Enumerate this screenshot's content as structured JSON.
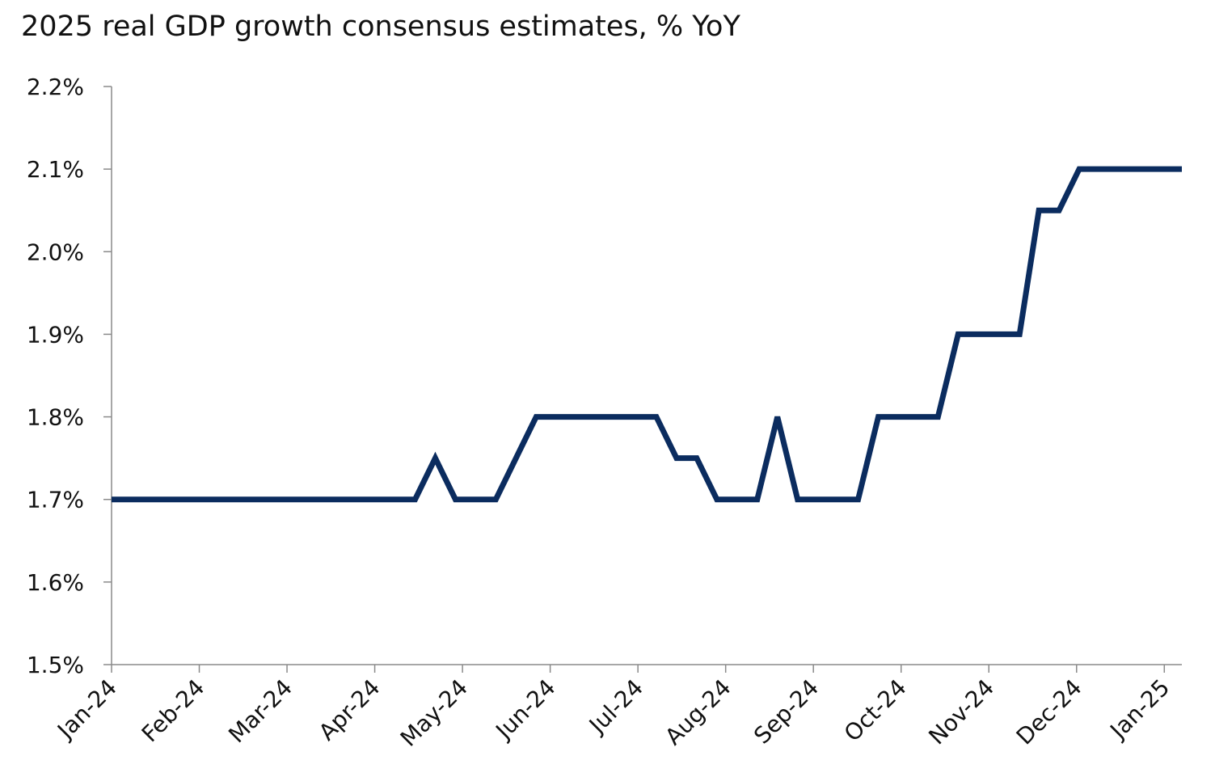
{
  "chart_data": {
    "type": "line",
    "title": "2025 real GDP growth consensus estimates, % YoY",
    "x": [
      0,
      3.46,
      3.69,
      3.92,
      4.38,
      4.84,
      6.21,
      6.44,
      6.67,
      6.9,
      7.36,
      7.59,
      7.82,
      8.51,
      8.74,
      9.42,
      9.65,
      10.35,
      10.57,
      10.8,
      11.03,
      12.2
    ],
    "series": [
      {
        "color": "#0b2c5f",
        "values": [
          1.7,
          1.7,
          1.75,
          1.7,
          1.7,
          1.8,
          1.8,
          1.75,
          1.75,
          1.7,
          1.7,
          1.8,
          1.7,
          1.7,
          1.8,
          1.8,
          1.9,
          1.9,
          2.05,
          2.05,
          2.1,
          2.1
        ]
      }
    ],
    "xlim": [
      0,
      12.2
    ],
    "xticks": [
      {
        "value": 0,
        "label": "Jan-24"
      },
      {
        "value": 1,
        "label": "Feb-24"
      },
      {
        "value": 2,
        "label": "Mar-24"
      },
      {
        "value": 3,
        "label": "Apr-24"
      },
      {
        "value": 4,
        "label": "May-24"
      },
      {
        "value": 5,
        "label": "Jun-24"
      },
      {
        "value": 6,
        "label": "Jul-24"
      },
      {
        "value": 7,
        "label": "Aug-24"
      },
      {
        "value": 8,
        "label": "Sep-24"
      },
      {
        "value": 9,
        "label": "Oct-24"
      },
      {
        "value": 10,
        "label": "Nov-24"
      },
      {
        "value": 11,
        "label": "Dec-24"
      },
      {
        "value": 12,
        "label": "Jan-25"
      }
    ],
    "ylim": [
      1.5,
      2.2
    ],
    "yticks": [
      {
        "value": 1.5,
        "label": "1.5%"
      },
      {
        "value": 1.6,
        "label": "1.6%"
      },
      {
        "value": 1.7,
        "label": "1.7%"
      },
      {
        "value": 1.8,
        "label": "1.8%"
      },
      {
        "value": 1.9,
        "label": "1.9%"
      },
      {
        "value": 2.0,
        "label": "2.0%"
      },
      {
        "value": 2.1,
        "label": "2.1%"
      },
      {
        "value": 2.2,
        "label": "2.2%"
      }
    ],
    "grid": false
  }
}
